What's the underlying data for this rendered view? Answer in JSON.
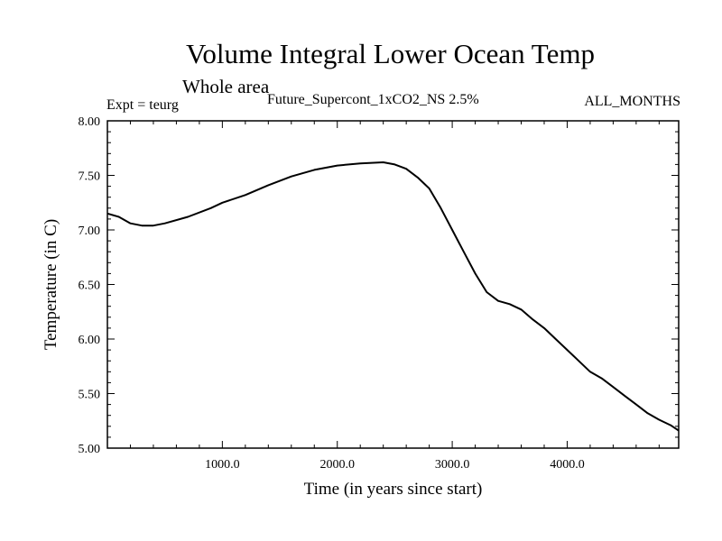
{
  "header": {
    "title": "Volume Integral Lower Ocean Temp",
    "subtitle": "Whole area",
    "expt": "Expt = teurg",
    "run_name": "Future_Supercont_1xCO2_NS 2.5%",
    "months": "ALL_MONTHS"
  },
  "chart_data": {
    "type": "line",
    "xlabel": "Time (in years since start)",
    "ylabel": "Temperature (in C)",
    "xlim": [
      0,
      4970
    ],
    "ylim": [
      5.0,
      8.0
    ],
    "x_ticks": [
      1000,
      2000,
      3000,
      4000
    ],
    "x_tick_labels": [
      "1000.0",
      "2000.0",
      "3000.0",
      "4000.0"
    ],
    "y_ticks": [
      5.0,
      5.5,
      6.0,
      6.5,
      7.0,
      7.5,
      8.0
    ],
    "y_tick_labels": [
      "5.00",
      "5.50",
      "6.00",
      "6.50",
      "7.00",
      "7.50",
      "8.00"
    ],
    "grid": false,
    "series": [
      {
        "color": "#000000",
        "x": [
          0,
          100,
          200,
          300,
          400,
          500,
          700,
          900,
          1000,
          1200,
          1400,
          1600,
          1800,
          2000,
          2200,
          2400,
          2500,
          2600,
          2700,
          2800,
          2900,
          3000,
          3100,
          3200,
          3300,
          3400,
          3500,
          3600,
          3700,
          3800,
          3900,
          4000,
          4100,
          4200,
          4300,
          4400,
          4500,
          4600,
          4700,
          4800,
          4900,
          4970
        ],
        "y": [
          7.15,
          7.12,
          7.06,
          7.04,
          7.04,
          7.06,
          7.12,
          7.2,
          7.25,
          7.32,
          7.41,
          7.49,
          7.55,
          7.59,
          7.61,
          7.62,
          7.6,
          7.56,
          7.48,
          7.38,
          7.2,
          7.0,
          6.8,
          6.6,
          6.43,
          6.35,
          6.32,
          6.27,
          6.18,
          6.1,
          6.0,
          5.9,
          5.8,
          5.7,
          5.64,
          5.56,
          5.48,
          5.4,
          5.32,
          5.26,
          5.21,
          5.16
        ]
      }
    ]
  }
}
